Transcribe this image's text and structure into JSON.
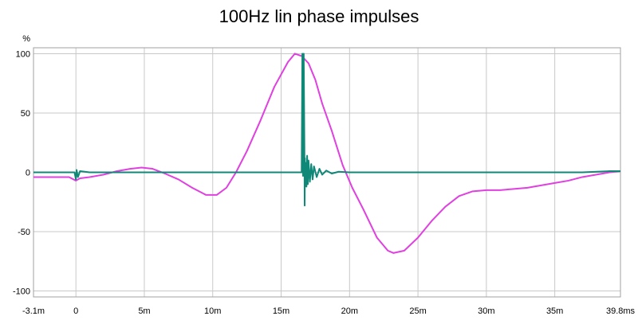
{
  "chart_data": {
    "type": "line",
    "title": "100Hz lin phase impulses",
    "ylabel": "%",
    "xlabel": "",
    "x_unit": "ms",
    "xlim": [
      -3.1,
      39.8
    ],
    "ylim": [
      -105,
      105
    ],
    "grid": true,
    "x_ticks": [
      {
        "value": -3.1,
        "label": "-3.1m"
      },
      {
        "value": 0,
        "label": "0"
      },
      {
        "value": 5,
        "label": "5m"
      },
      {
        "value": 10,
        "label": "10m"
      },
      {
        "value": 15,
        "label": "15m"
      },
      {
        "value": 20,
        "label": "20m"
      },
      {
        "value": 25,
        "label": "25m"
      },
      {
        "value": 30,
        "label": "30m"
      },
      {
        "value": 35,
        "label": "35m"
      },
      {
        "value": 39.8,
        "label": "39.8ms"
      }
    ],
    "y_ticks": [
      {
        "value": 100,
        "label": "100"
      },
      {
        "value": 50,
        "label": "50"
      },
      {
        "value": 0,
        "label": "0"
      },
      {
        "value": -50,
        "label": "-50"
      },
      {
        "value": -100,
        "label": "-100"
      }
    ],
    "series": [
      {
        "color": "#e040e0",
        "x": [
          -3.1,
          -1.5,
          -0.5,
          0.0,
          0.3,
          1.0,
          2.0,
          3.0,
          4.0,
          4.8,
          5.6,
          6.5,
          7.5,
          8.5,
          9.5,
          10.3,
          11.0,
          11.7,
          12.5,
          13.5,
          14.5,
          15.5,
          16.0,
          16.5,
          17.0,
          17.5,
          18.0,
          18.7,
          19.5,
          20.2,
          21.0,
          22.0,
          22.8,
          23.2,
          24.0,
          25.0,
          26.0,
          27.0,
          28.0,
          29.0,
          30.0,
          31.0,
          32.0,
          33.0,
          34.0,
          35.0,
          36.0,
          37.0,
          38.0,
          39.0,
          39.8
        ],
        "y": [
          -4,
          -4,
          -4,
          -7,
          -5,
          -4,
          -2,
          1,
          3,
          4,
          3,
          -1,
          -6,
          -13,
          -19,
          -19,
          -13,
          0,
          18,
          44,
          72,
          93,
          100,
          98,
          92,
          78,
          58,
          35,
          6,
          -13,
          -31,
          -55,
          -66,
          -68,
          -66,
          -55,
          -41,
          -29,
          -20,
          -16,
          -15,
          -15,
          -14,
          -13,
          -11,
          -9,
          -7,
          -4,
          -2,
          0,
          1
        ]
      },
      {
        "color": "#108878",
        "x": [
          -3.1,
          -0.1,
          0.0,
          0.05,
          0.15,
          0.3,
          1.0,
          5.0,
          10.0,
          14.0,
          16.0,
          16.4,
          16.5,
          16.55,
          16.6,
          16.65,
          16.7,
          16.72,
          16.74,
          16.76,
          16.8,
          16.85,
          16.9,
          16.95,
          17.0,
          17.1,
          17.2,
          17.3,
          17.4,
          17.6,
          17.8,
          18.0,
          18.3,
          18.7,
          19.2,
          20.0,
          22.0,
          25.0,
          30.0,
          35.0,
          37.0,
          39.0,
          39.8
        ],
        "y": [
          0,
          0,
          -6,
          2,
          -4,
          1,
          0,
          0,
          0,
          0,
          0,
          0,
          0,
          100,
          -3,
          100,
          22,
          -28,
          12,
          -12,
          8,
          -12,
          14,
          -10,
          10,
          -8,
          7,
          -6,
          5,
          -4,
          3,
          -2,
          1.5,
          -1,
          0.5,
          0,
          0,
          0,
          0,
          0,
          0,
          1,
          1
        ]
      }
    ]
  }
}
